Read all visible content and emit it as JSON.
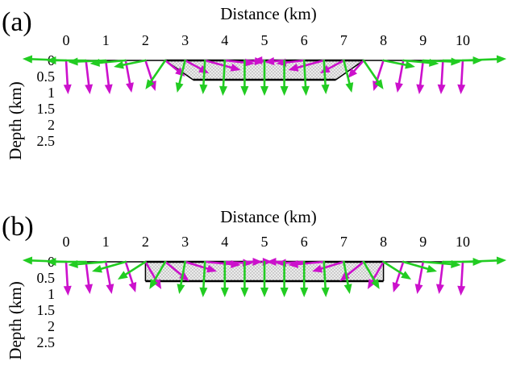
{
  "colors": {
    "green": "#22cc22",
    "magenta": "#cc11cc",
    "outline": "#000000",
    "fill": "#d9d9d9"
  },
  "panels": [
    {
      "label": "(a)",
      "xlabel": "Distance (km)",
      "ylabel": "Depth (km)",
      "x_ticks": [
        "0",
        "1",
        "2",
        "3",
        "4",
        "5",
        "6",
        "7",
        "8",
        "9",
        "10"
      ],
      "y_ticks": [
        "0",
        "0.5",
        "1",
        "1.5",
        "2",
        "2.5"
      ],
      "shape": {
        "top": [
          [
            2.5,
            0
          ],
          [
            7.5,
            0
          ]
        ],
        "bottom": [
          [
            3.2,
            0.6
          ],
          [
            6.8,
            0.6
          ]
        ]
      },
      "magenta_arrows": [
        {
          "x": 0.0,
          "dx": 0.05,
          "dz": 1.05
        },
        {
          "x": 0.5,
          "dx": 0.1,
          "dz": 1.05
        },
        {
          "x": 1.0,
          "dx": 0.1,
          "dz": 1.05
        },
        {
          "x": 1.5,
          "dx": 0.15,
          "dz": 1.0
        },
        {
          "x": 2.0,
          "dx": 0.25,
          "dz": 0.95
        },
        {
          "x": 2.5,
          "dx": 0.5,
          "dz": 0.5
        },
        {
          "x": 3.0,
          "dx": 0.6,
          "dz": 0.4
        },
        {
          "x": 3.5,
          "dx": 0.9,
          "dz": 0.3
        },
        {
          "x": 4.0,
          "dx": 0.75,
          "dz": 0.1
        },
        {
          "x": 4.5,
          "dx": 0.5,
          "dz": 0.05
        },
        {
          "x": 5.0,
          "dx": -0.3,
          "dz": 0.0
        },
        {
          "x": 5.5,
          "dx": -0.5,
          "dz": 0.05
        },
        {
          "x": 6.0,
          "dx": -0.7,
          "dz": 0.1
        },
        {
          "x": 6.5,
          "dx": -0.9,
          "dz": 0.3
        },
        {
          "x": 7.0,
          "dx": -0.6,
          "dz": 0.4
        },
        {
          "x": 7.5,
          "dx": -0.4,
          "dz": 0.55
        },
        {
          "x": 8.0,
          "dx": -0.25,
          "dz": 0.95
        },
        {
          "x": 8.5,
          "dx": -0.15,
          "dz": 1.0
        },
        {
          "x": 9.0,
          "dx": -0.1,
          "dz": 1.05
        },
        {
          "x": 9.5,
          "dx": -0.05,
          "dz": 1.05
        },
        {
          "x": 10.0,
          "dx": -0.05,
          "dz": 1.05
        }
      ],
      "green_arrows": [
        {
          "x": 0.0,
          "dx": -1.1,
          "dz": -0.05
        },
        {
          "x": 0.5,
          "dx": -1.0,
          "dz": 0.0
        },
        {
          "x": 1.0,
          "dx": -0.95,
          "dz": 0.05
        },
        {
          "x": 1.5,
          "dx": -0.9,
          "dz": 0.1
        },
        {
          "x": 2.0,
          "dx": -0.8,
          "dz": 0.2
        },
        {
          "x": 2.5,
          "dx": -0.5,
          "dz": 0.9
        },
        {
          "x": 3.0,
          "dx": -0.2,
          "dz": 1.0
        },
        {
          "x": 3.5,
          "dx": -0.05,
          "dz": 1.05
        },
        {
          "x": 4.0,
          "dx": -0.05,
          "dz": 1.1
        },
        {
          "x": 4.5,
          "dx": 0.0,
          "dz": 1.1
        },
        {
          "x": 5.0,
          "dx": 0.0,
          "dz": 1.1
        },
        {
          "x": 5.5,
          "dx": 0.0,
          "dz": 1.1
        },
        {
          "x": 6.0,
          "dx": 0.05,
          "dz": 1.1
        },
        {
          "x": 6.5,
          "dx": 0.05,
          "dz": 1.05
        },
        {
          "x": 7.0,
          "dx": 0.2,
          "dz": 1.0
        },
        {
          "x": 7.5,
          "dx": 0.5,
          "dz": 0.9
        },
        {
          "x": 8.0,
          "dx": 0.8,
          "dz": 0.2
        },
        {
          "x": 8.5,
          "dx": 0.9,
          "dz": 0.1
        },
        {
          "x": 9.0,
          "dx": 0.95,
          "dz": 0.05
        },
        {
          "x": 9.5,
          "dx": 1.0,
          "dz": 0.0
        },
        {
          "x": 10.0,
          "dx": 1.1,
          "dz": -0.05
        }
      ]
    },
    {
      "label": "(b)",
      "xlabel": "Distance (km)",
      "ylabel": "Depth (km)",
      "x_ticks": [
        "0",
        "1",
        "2",
        "3",
        "4",
        "5",
        "6",
        "7",
        "8",
        "9",
        "10"
      ],
      "y_ticks": [
        "0",
        "0.5",
        "1",
        "1.5",
        "2",
        "2.5"
      ],
      "shape": {
        "top": [
          [
            2.0,
            0
          ],
          [
            8.0,
            0
          ]
        ],
        "bottom": [
          [
            2.0,
            0.6
          ],
          [
            8.0,
            0.6
          ]
        ]
      },
      "magenta_arrows": [
        {
          "x": 0.0,
          "dx": 0.05,
          "dz": 1.05
        },
        {
          "x": 0.5,
          "dx": 0.1,
          "dz": 1.0
        },
        {
          "x": 1.0,
          "dx": 0.15,
          "dz": 1.0
        },
        {
          "x": 1.5,
          "dx": 0.25,
          "dz": 0.95
        },
        {
          "x": 2.0,
          "dx": 0.4,
          "dz": 0.85
        },
        {
          "x": 2.5,
          "dx": 0.6,
          "dz": 0.6
        },
        {
          "x": 3.0,
          "dx": 0.8,
          "dz": 0.3
        },
        {
          "x": 3.5,
          "dx": 0.9,
          "dz": 0.1
        },
        {
          "x": 4.0,
          "dx": 0.7,
          "dz": 0.05
        },
        {
          "x": 4.5,
          "dx": 0.45,
          "dz": 0.0
        },
        {
          "x": 5.0,
          "dx": 0.2,
          "dz": 0.0
        },
        {
          "x": 5.5,
          "dx": -0.45,
          "dz": 0.0
        },
        {
          "x": 6.0,
          "dx": -0.7,
          "dz": 0.05
        },
        {
          "x": 6.5,
          "dx": -0.9,
          "dz": 0.1
        },
        {
          "x": 7.0,
          "dx": -0.8,
          "dz": 0.3
        },
        {
          "x": 7.5,
          "dx": -0.6,
          "dz": 0.6
        },
        {
          "x": 8.0,
          "dx": -0.4,
          "dz": 0.85
        },
        {
          "x": 8.5,
          "dx": -0.25,
          "dz": 0.95
        },
        {
          "x": 9.0,
          "dx": -0.15,
          "dz": 1.0
        },
        {
          "x": 9.5,
          "dx": -0.1,
          "dz": 1.0
        },
        {
          "x": 10.0,
          "dx": -0.05,
          "dz": 1.05
        }
      ],
      "green_arrows": [
        {
          "x": 0.0,
          "dx": -1.1,
          "dz": -0.05
        },
        {
          "x": 0.5,
          "dx": -1.0,
          "dz": 0.0
        },
        {
          "x": 1.0,
          "dx": -0.95,
          "dz": 0.1
        },
        {
          "x": 1.5,
          "dx": -0.85,
          "dz": 0.3
        },
        {
          "x": 2.0,
          "dx": -0.7,
          "dz": 0.55
        },
        {
          "x": 2.5,
          "dx": -0.4,
          "dz": 0.85
        },
        {
          "x": 3.0,
          "dx": -0.15,
          "dz": 1.0
        },
        {
          "x": 3.5,
          "dx": -0.05,
          "dz": 1.1
        },
        {
          "x": 4.0,
          "dx": 0.0,
          "dz": 1.1
        },
        {
          "x": 4.5,
          "dx": 0.0,
          "dz": 1.1
        },
        {
          "x": 5.0,
          "dx": 0.0,
          "dz": 1.1
        },
        {
          "x": 5.5,
          "dx": 0.0,
          "dz": 1.1
        },
        {
          "x": 6.0,
          "dx": 0.0,
          "dz": 1.1
        },
        {
          "x": 6.5,
          "dx": 0.05,
          "dz": 1.1
        },
        {
          "x": 7.0,
          "dx": 0.15,
          "dz": 1.0
        },
        {
          "x": 7.5,
          "dx": 0.4,
          "dz": 0.85
        },
        {
          "x": 8.0,
          "dx": 0.7,
          "dz": 0.55
        },
        {
          "x": 8.5,
          "dx": 0.85,
          "dz": 0.3
        },
        {
          "x": 9.0,
          "dx": 0.95,
          "dz": 0.1
        },
        {
          "x": 9.5,
          "dx": 1.0,
          "dz": 0.0
        },
        {
          "x": 10.0,
          "dx": 1.1,
          "dz": -0.05
        }
      ]
    }
  ]
}
